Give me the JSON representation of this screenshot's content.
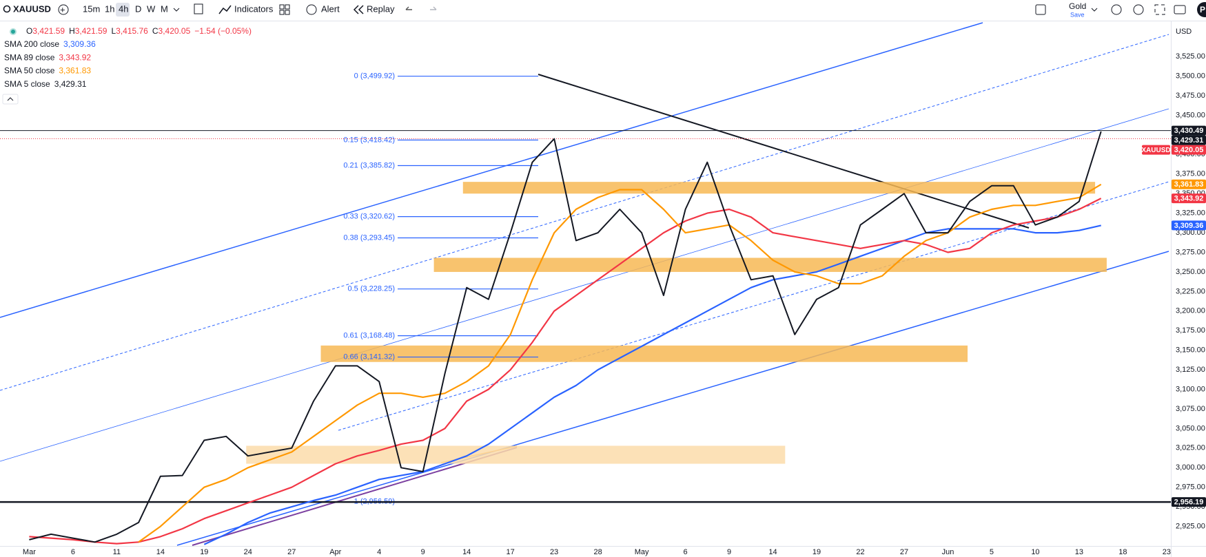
{
  "toolbar": {
    "symbol": "XAUUSD",
    "intervals": [
      "15m",
      "1h",
      "4h",
      "D",
      "W",
      "M"
    ],
    "indicators": "Indicators",
    "alert": "Alert",
    "replay": "Replay",
    "layout_name": "Gold",
    "layout_status": "Save",
    "avatar": "P"
  },
  "legend": {
    "ohlc": [
      {
        "key": "O",
        "value": "3,421.59"
      },
      {
        "key": "H",
        "value": "3,421.59"
      },
      {
        "key": "L",
        "value": "3,415.76"
      },
      {
        "key": "C",
        "value": "3,420.05"
      }
    ],
    "change": "−1.54 (−0.05%)"
  },
  "chart_data": {
    "type": "line",
    "currency": "USD",
    "categories": [
      "Mar",
      null,
      "6",
      null,
      "11",
      null,
      "14",
      null,
      "19",
      null,
      "24",
      null,
      "27",
      null,
      "Apr",
      null,
      "4",
      null,
      "9",
      null,
      "14",
      null,
      "17",
      null,
      "23",
      null,
      "28",
      null,
      "May",
      null,
      "6",
      null,
      "9",
      null,
      "14",
      null,
      "19",
      null,
      "22",
      null,
      "27",
      null,
      "Jun",
      null,
      "5",
      null,
      "10",
      null,
      "13",
      null,
      "18",
      null,
      "23"
    ],
    "series": [
      {
        "name": "SMA 200 close",
        "color": "#2962ff",
        "last_label": "3,309.36",
        "values": [
          null,
          null,
          null,
          null,
          null,
          null,
          null,
          null,
          2902,
          2915,
          2930,
          2942,
          2950,
          2958,
          2965,
          2975,
          2985,
          2990,
          2995,
          3005,
          3015,
          3030,
          3050,
          3070,
          3090,
          3105,
          3125,
          3140,
          3155,
          3170,
          3185,
          3200,
          3215,
          3230,
          3240,
          3245,
          3250,
          3260,
          3270,
          3280,
          3290,
          3300,
          3305,
          3305,
          3305,
          3305,
          3300,
          3300,
          3303,
          3309.36,
          null,
          null,
          null
        ]
      },
      {
        "name": "SMA 89 close",
        "color": "#f23645",
        "last_label": "3,343.92",
        "values": [
          2912,
          2910,
          2908,
          2905,
          2903,
          2905,
          2912,
          2922,
          2935,
          2945,
          2955,
          2965,
          2975,
          2990,
          3005,
          3015,
          3022,
          3030,
          3035,
          3050,
          3085,
          3100,
          3125,
          3160,
          3200,
          3220,
          3240,
          3260,
          3280,
          3300,
          3315,
          3325,
          3330,
          3320,
          3300,
          3295,
          3290,
          3285,
          3280,
          3285,
          3290,
          3285,
          3275,
          3280,
          3300,
          3310,
          3315,
          3320,
          3330,
          3343.92,
          null,
          null,
          null
        ]
      },
      {
        "name": "SMA 50 close",
        "color": "#ff9800",
        "last_label": "3,361.83",
        "values": [
          null,
          null,
          null,
          null,
          null,
          2905,
          2925,
          2950,
          2975,
          2985,
          3000,
          3010,
          3020,
          3040,
          3060,
          3080,
          3095,
          3095,
          3090,
          3095,
          3110,
          3130,
          3170,
          3240,
          3300,
          3330,
          3345,
          3355,
          3355,
          3330,
          3300,
          3305,
          3310,
          3290,
          3265,
          3250,
          3245,
          3235,
          3235,
          3245,
          3270,
          3290,
          3300,
          3320,
          3330,
          3335,
          3335,
          3340,
          3345,
          3361.83,
          null,
          null,
          null
        ]
      },
      {
        "name": "SMA 5 close",
        "color": "#131722",
        "last_label": "3,429.31",
        "values": [
          2908,
          2915,
          2910,
          2905,
          2915,
          2930,
          2989,
          2990,
          3035,
          3040,
          3015,
          3020,
          3025,
          3085,
          3130,
          3130,
          3110,
          3000,
          2995,
          3120,
          3230,
          3215,
          3300,
          3390,
          3420,
          3290,
          3300,
          3330,
          3300,
          3220,
          3330,
          3390,
          3310,
          3240,
          3245,
          3170,
          3215,
          3230,
          3310,
          3330,
          3350,
          3300,
          3300,
          3340,
          3360,
          3360,
          3310,
          3320,
          3340,
          3429.31,
          null,
          null,
          null
        ]
      }
    ],
    "ylim": [
      2900,
      3570
    ],
    "yticks": [
      {
        "value": 2925,
        "label": "2,925.00"
      },
      {
        "value": 2950,
        "label": "2,950.00"
      },
      {
        "value": 2975,
        "label": "2,975.00"
      },
      {
        "value": 3000,
        "label": "3,000.00"
      },
      {
        "value": 3025,
        "label": "3,025.00"
      },
      {
        "value": 3050,
        "label": "3,050.00"
      },
      {
        "value": 3075,
        "label": "3,075.00"
      },
      {
        "value": 3100,
        "label": "3,100.00"
      },
      {
        "value": 3125,
        "label": "3,125.00"
      },
      {
        "value": 3150,
        "label": "3,150.00"
      },
      {
        "value": 3175,
        "label": "3,175.00"
      },
      {
        "value": 3200,
        "label": "3,200.00"
      },
      {
        "value": 3225,
        "label": "3,225.00"
      },
      {
        "value": 3250,
        "label": "3,250.00"
      },
      {
        "value": 3275,
        "label": "3,275.00"
      },
      {
        "value": 3300,
        "label": "3,300.00"
      },
      {
        "value": 3325,
        "label": "3,325.00"
      },
      {
        "value": 3350,
        "label": "3,350.00"
      },
      {
        "value": 3375,
        "label": "3,375.00"
      },
      {
        "value": 3400,
        "label": "3,400.00"
      },
      {
        "value": 3425,
        "label": "3,425.00"
      },
      {
        "value": 3450,
        "label": "3,450.00"
      },
      {
        "value": 3475,
        "label": "3,475.00"
      },
      {
        "value": 3500,
        "label": "3,500.00"
      },
      {
        "value": 3525,
        "label": "3,525.00"
      }
    ],
    "grid": false,
    "price_lines": [
      {
        "value": 3430.49,
        "label": "3,430.49",
        "color": "#131722",
        "style": "solid"
      },
      {
        "name": "XAUUSD",
        "value": 3420.05,
        "label": "3,420.05",
        "color": "#f23645",
        "style": "dotted"
      },
      {
        "value": 2956.19,
        "label": "2,956.19",
        "color": "#131722",
        "style": "thick"
      }
    ],
    "zones": [
      {
        "x": [
          19.83,
          48.73
        ],
        "top": 3365,
        "bottom": 3350,
        "color": "#f7b955"
      },
      {
        "x": [
          18.5,
          49.26
        ],
        "top": 3268,
        "bottom": 3250,
        "color": "#f7b955"
      },
      {
        "x": [
          13.33,
          42.9
        ],
        "top": 3156,
        "bottom": 3135,
        "color": "#f7b955"
      },
      {
        "x": [
          9.92,
          34.56
        ],
        "top": 3028,
        "bottom": 3005,
        "color": "#fbdcaa"
      }
    ],
    "fib_levels": [
      {
        "label": "0 (3,499.92)",
        "value": 3499.92
      },
      {
        "label": "0.15 (3,418.42)",
        "value": 3418.42
      },
      {
        "label": "0.21 (3,385.82)",
        "value": 3385.82
      },
      {
        "label": "0.33 (3,320.62)",
        "value": 3320.62
      },
      {
        "label": "0.38 (3,293.45)",
        "value": 3293.45
      },
      {
        "label": "0.5 (3,228.25)",
        "value": 3228.25
      },
      {
        "label": "0.61 (3,168.48)",
        "value": 3168.48
      },
      {
        "label": "0.66 (3,141.32)",
        "value": 3141.32
      },
      {
        "label": "1 (2,956.59)",
        "value": 2956.59
      }
    ]
  }
}
